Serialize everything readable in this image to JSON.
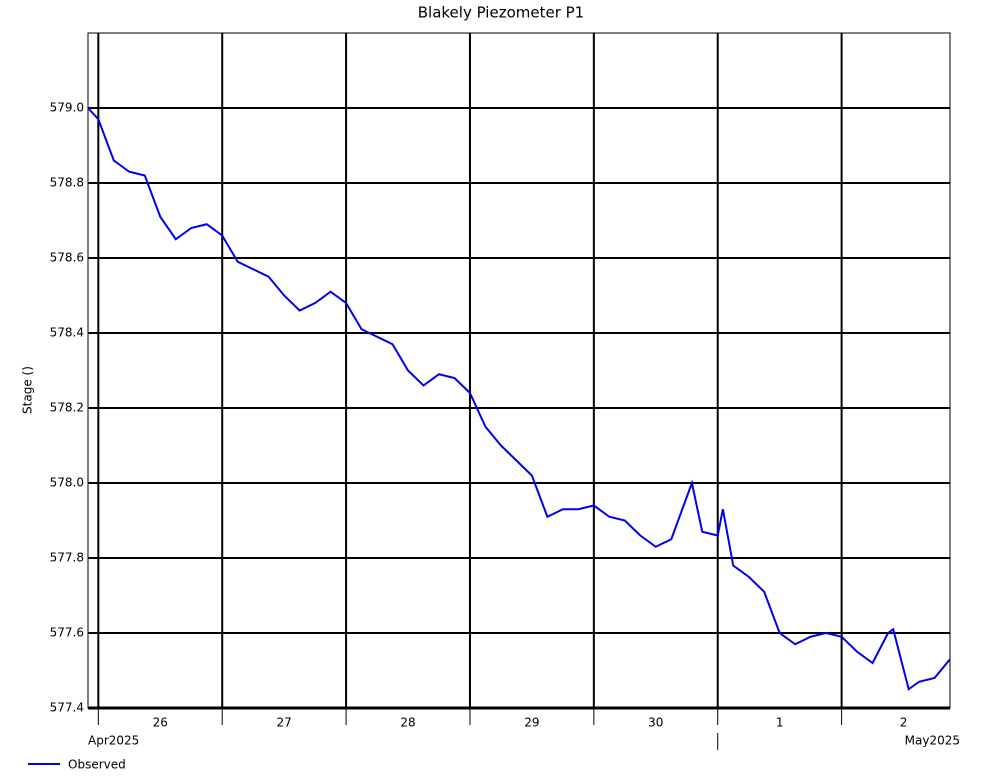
{
  "chart_data": {
    "type": "line",
    "title": "Blakely Piezometer P1",
    "y_label": "Stage ()",
    "x": [
      "2025-04-25T22:00",
      "2025-04-26T00:00",
      "2025-04-26T03:00",
      "2025-04-26T06:00",
      "2025-04-26T09:00",
      "2025-04-26T12:00",
      "2025-04-26T15:00",
      "2025-04-26T18:00",
      "2025-04-26T21:00",
      "2025-04-27T00:00",
      "2025-04-27T03:00",
      "2025-04-27T06:00",
      "2025-04-27T09:00",
      "2025-04-27T12:00",
      "2025-04-27T15:00",
      "2025-04-27T18:00",
      "2025-04-27T21:00",
      "2025-04-28T00:00",
      "2025-04-28T03:00",
      "2025-04-28T06:00",
      "2025-04-28T09:00",
      "2025-04-28T12:00",
      "2025-04-28T15:00",
      "2025-04-28T18:00",
      "2025-04-28T21:00",
      "2025-04-29T00:00",
      "2025-04-29T03:00",
      "2025-04-29T06:00",
      "2025-04-29T09:00",
      "2025-04-29T12:00",
      "2025-04-29T15:00",
      "2025-04-29T18:00",
      "2025-04-29T21:00",
      "2025-04-30T00:00",
      "2025-04-30T03:00",
      "2025-04-30T06:00",
      "2025-04-30T09:00",
      "2025-04-30T12:00",
      "2025-04-30T15:00",
      "2025-04-30T19:00",
      "2025-04-30T21:00",
      "2025-05-01T00:00",
      "2025-05-01T01:00",
      "2025-05-01T03:00",
      "2025-05-01T06:00",
      "2025-05-01T09:00",
      "2025-05-01T12:00",
      "2025-05-01T15:00",
      "2025-05-01T18:00",
      "2025-05-01T21:00",
      "2025-05-02T00:00",
      "2025-05-02T03:00",
      "2025-05-02T06:00",
      "2025-05-02T09:00",
      "2025-05-02T10:00",
      "2025-05-02T13:00",
      "2025-05-02T15:00",
      "2025-05-02T18:00",
      "2025-05-02T21:00"
    ],
    "series": [
      {
        "name": "Observed",
        "color": "#0000ee",
        "values": [
          579.0,
          578.97,
          578.86,
          578.83,
          578.82,
          578.71,
          578.65,
          578.68,
          578.69,
          578.66,
          578.59,
          578.57,
          578.55,
          578.5,
          578.46,
          578.48,
          578.51,
          578.48,
          578.41,
          578.39,
          578.37,
          578.3,
          578.26,
          578.29,
          578.28,
          578.24,
          578.15,
          578.1,
          578.06,
          578.02,
          577.91,
          577.93,
          577.93,
          577.94,
          577.91,
          577.9,
          577.86,
          577.83,
          577.85,
          578.0,
          577.87,
          577.86,
          577.93,
          577.78,
          577.75,
          577.71,
          577.6,
          577.57,
          577.59,
          577.6,
          577.59,
          577.55,
          577.52,
          577.6,
          577.61,
          577.45,
          577.47,
          577.48,
          577.53
        ]
      }
    ],
    "xlim": [
      "2025-04-25T22:00",
      "2025-05-02T21:00"
    ],
    "xticks": [
      {
        "value": "2025-04-26T00:00",
        "label": "26"
      },
      {
        "value": "2025-04-27T00:00",
        "label": "27"
      },
      {
        "value": "2025-04-28T00:00",
        "label": "28"
      },
      {
        "value": "2025-04-29T00:00",
        "label": "29"
      },
      {
        "value": "2025-04-30T00:00",
        "label": "30"
      },
      {
        "value": "2025-05-01T00:00",
        "label": "1"
      },
      {
        "value": "2025-05-02T00:00",
        "label": "2"
      }
    ],
    "x_periods": [
      {
        "value": "2025-04-25T22:00",
        "label": "Apr2025"
      },
      {
        "value": "2025-05-01T00:00",
        "label": "May2025"
      }
    ],
    "ylim": [
      577.4,
      579.2
    ],
    "yticks": [
      577.4,
      577.6,
      577.8,
      {
        "value": 578.0,
        "label": "578.0"
      },
      578.2,
      578.4,
      578.6,
      578.8,
      {
        "value": 579.0,
        "label": "579.0"
      }
    ],
    "grid": true
  }
}
